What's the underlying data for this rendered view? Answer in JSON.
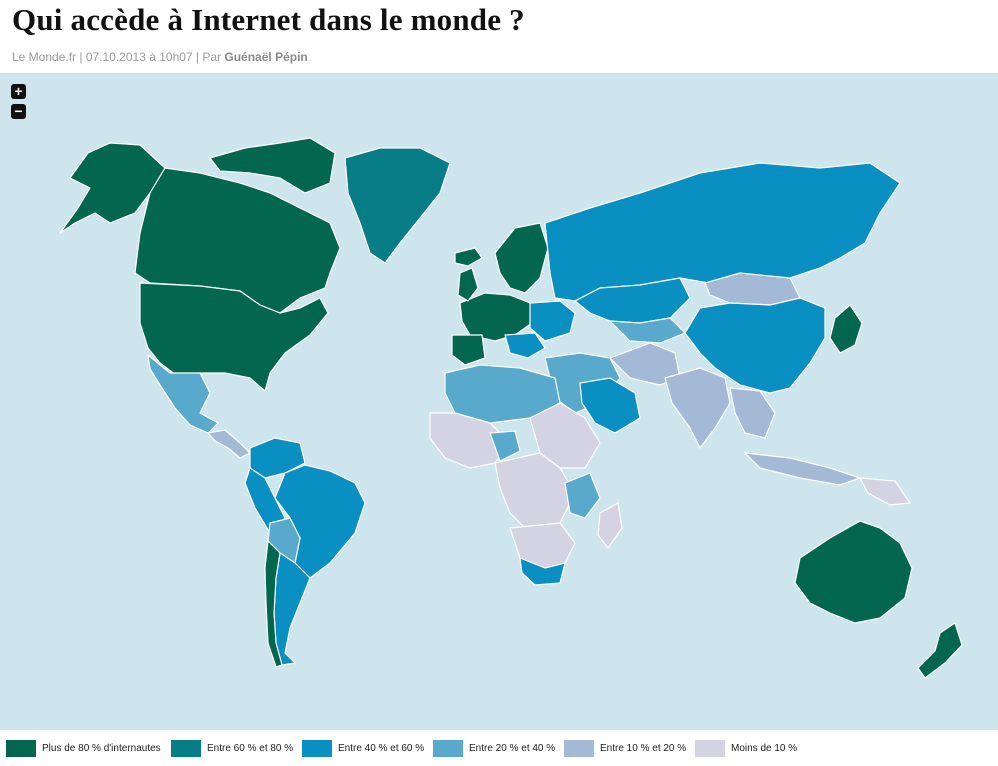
{
  "header": {
    "title": "Qui accède à Internet dans le monde ?",
    "source": "Le Monde.fr | 07.10.2013 à 10h07 | Par ",
    "author": "Guénaël Pépin"
  },
  "controls": {
    "zoom_in": "+",
    "zoom_out": "−"
  },
  "colors": {
    "ocean": "#cfe5ee",
    "border": "#ffffff",
    "c80": "#03674f",
    "c60": "#067d87",
    "c40": "#0a8fc2",
    "c20": "#58a9cc",
    "c10": "#a3b9d6",
    "c0": "#d3d3e4"
  },
  "legend": [
    {
      "key": "c80",
      "label": "Plus de 80 % d'internautes"
    },
    {
      "key": "c60",
      "label": "Entre 60 % et 80 %"
    },
    {
      "key": "c40",
      "label": "Entre 40 % et 60 %"
    },
    {
      "key": "c20",
      "label": "Entre 20 % et 40 %"
    },
    {
      "key": "c10",
      "label": "Entre 10 % et 20 %"
    },
    {
      "key": "c0",
      "label": "Moins de 10 %"
    }
  ]
}
